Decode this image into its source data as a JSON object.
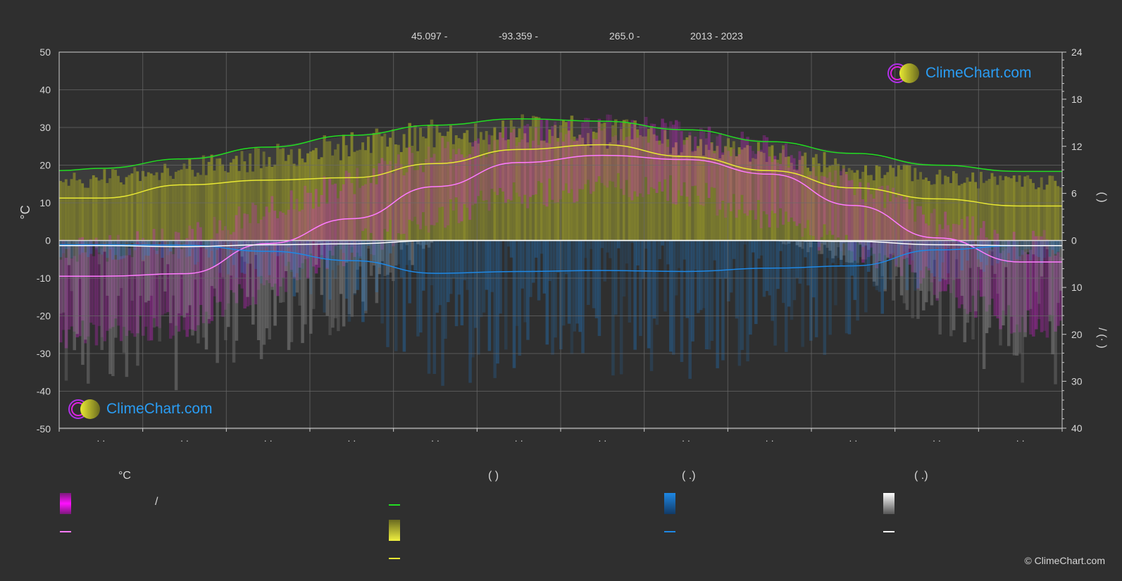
{
  "header": {
    "lat": "45.097 -",
    "lon": "-93.359 -",
    "elev": "265.0 -",
    "years": "2013 - 2023"
  },
  "brand": {
    "name": "ClimeChart.com",
    "copyright": "© ClimeChart.com"
  },
  "colors": {
    "background": "#2f2f2f",
    "temp_range": "#e020e0",
    "temp_mean": "#ff7bff",
    "daylight": "#22dd22",
    "sunshine": "#e8e833",
    "rain": "#1e88e5",
    "snow": "#ffffff"
  },
  "chart_data": {
    "type": "line",
    "x_months": 12,
    "month_tick_labels": [
      "· ·",
      "· ·",
      "· ·",
      "· ·",
      "· ·",
      "· ·",
      "· ·",
      "· ·",
      "· ·",
      "· ·",
      "· ·",
      "· ·"
    ],
    "y_left": {
      "label": "°C",
      "ylim": [
        -50,
        50
      ],
      "ticks": [
        50,
        40,
        30,
        20,
        10,
        0,
        -10,
        -20,
        -30,
        -40,
        -50
      ]
    },
    "y_right_top": {
      "label": "(   )",
      "range_hours": [
        0,
        24
      ],
      "ticks": [
        24,
        18,
        12,
        6,
        0
      ]
    },
    "y_right_bottom": {
      "label": "/   (·   )",
      "range_mm": [
        0,
        40
      ],
      "ticks": [
        0,
        10,
        20,
        30,
        40
      ]
    },
    "grid": true,
    "series": [
      {
        "key": "daylight",
        "axis": "hours",
        "x": [
          0,
          0.5,
          1.5,
          2.5,
          3.5,
          4.5,
          5.5,
          6.5,
          7.5,
          8.5,
          9.5,
          10.5,
          11.5,
          12
        ],
        "values": [
          8.9,
          9.2,
          10.4,
          11.9,
          13.4,
          14.7,
          15.5,
          15.2,
          14.1,
          12.6,
          11.1,
          9.6,
          8.8,
          8.8
        ]
      },
      {
        "key": "sunshine_avg",
        "axis": "hours",
        "x": [
          0,
          0.5,
          1.5,
          2.5,
          3.5,
          4.5,
          5.5,
          6.5,
          7.5,
          8.5,
          9.5,
          10.5,
          11.5,
          12
        ],
        "values": [
          5.4,
          5.4,
          7.1,
          7.7,
          8.0,
          9.8,
          11.6,
          12.2,
          10.7,
          8.9,
          6.7,
          5.3,
          4.4,
          4.4
        ]
      },
      {
        "key": "sunshine_top",
        "axis": "hours",
        "x": [
          0,
          0.5,
          1.5,
          2.5,
          3.5,
          4.5,
          5.5,
          6.5,
          7.5,
          8.5,
          9.5,
          10.5,
          11.5,
          12
        ],
        "values": [
          7.6,
          8.0,
          9.1,
          10.6,
          12.2,
          13.7,
          14.3,
          13.8,
          12.6,
          11.0,
          9.2,
          8.0,
          7.5,
          7.5
        ]
      },
      {
        "key": "temp_mean",
        "axis": "celsius",
        "x": [
          0,
          0.5,
          1.5,
          2.5,
          3.5,
          4.5,
          5.5,
          6.5,
          7.5,
          8.5,
          9.5,
          10.5,
          11.5,
          12
        ],
        "values": [
          -9.5,
          -9.5,
          -8.8,
          -0.8,
          5.8,
          14.3,
          20.7,
          22.6,
          21.5,
          17.6,
          9.3,
          0.7,
          -5.7,
          -5.7
        ]
      },
      {
        "key": "temp_max_band",
        "axis": "celsius",
        "x": [
          0,
          0.5,
          1.5,
          2.5,
          3.5,
          4.5,
          5.5,
          6.5,
          7.5,
          8.5,
          9.5,
          10.5,
          11.5,
          12
        ],
        "values": [
          -2,
          -2,
          0,
          8,
          16,
          23,
          28,
          30,
          28,
          24,
          15,
          5,
          -1,
          -1
        ]
      },
      {
        "key": "temp_min_band",
        "axis": "celsius",
        "x": [
          0,
          0.5,
          1.5,
          2.5,
          3.5,
          4.5,
          5.5,
          6.5,
          7.5,
          8.5,
          9.5,
          10.5,
          11.5,
          12
        ],
        "values": [
          -25,
          -25,
          -22,
          -12,
          -2,
          6,
          12,
          15,
          13,
          6,
          -2,
          -12,
          -22,
          -22
        ]
      },
      {
        "key": "rain_mean",
        "axis": "mm",
        "x": [
          0,
          0.5,
          1.5,
          2.5,
          3.5,
          4.5,
          5.5,
          6.5,
          7.5,
          8.5,
          9.5,
          10.5,
          11.5,
          12
        ],
        "values": [
          0.9,
          0.9,
          1.0,
          2.3,
          4.3,
          7.0,
          6.6,
          6.4,
          6.6,
          5.9,
          5.4,
          2.0,
          1.1,
          1.1
        ]
      },
      {
        "key": "snow_mean",
        "axis": "mm",
        "x": [
          0,
          0.5,
          1.5,
          2.5,
          3.5,
          4.5,
          5.5,
          6.5,
          7.5,
          8.5,
          9.5,
          10.5,
          11.5,
          12
        ],
        "values": [
          1.1,
          1.1,
          1.3,
          0.9,
          0.7,
          0.0,
          0.0,
          0.0,
          0.0,
          0.0,
          0.2,
          0.9,
          1.1,
          1.1
        ]
      }
    ]
  },
  "legend": {
    "col1": {
      "title": "°C",
      "item1": "/",
      "item2": ""
    },
    "col2": {
      "title": "(          )",
      "item1": "",
      "item2": "",
      "item3": ""
    },
    "col3": {
      "title": "(   .)",
      "item1": "",
      "item2": ""
    },
    "col4": {
      "title": "(   .)",
      "item1": "",
      "item2": ""
    }
  }
}
